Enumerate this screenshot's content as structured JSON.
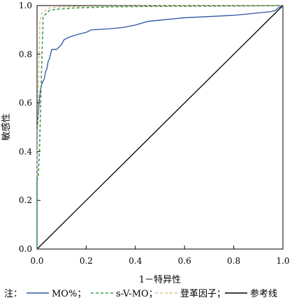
{
  "chart_data": {
    "type": "line",
    "xlabel": "1－特异性",
    "ylabel": "敏感性",
    "xlim": [
      0,
      1
    ],
    "ylim": [
      0,
      1
    ],
    "xticks": [
      "0.0",
      "0.2",
      "0.4",
      "0.6",
      "0.8",
      "1.0"
    ],
    "yticks": [
      "0.0",
      "0.2",
      "0.4",
      "0.6",
      "0.8",
      "1.0"
    ],
    "grid": false,
    "legend_prefix": "注：",
    "legend_position": "bottom",
    "series": [
      {
        "name": "MO%；",
        "color": "#2f55a4",
        "style": "solid",
        "points": [
          [
            0,
            0
          ],
          [
            0,
            0.48
          ],
          [
            0.005,
            0.55
          ],
          [
            0.01,
            0.62
          ],
          [
            0.015,
            0.66
          ],
          [
            0.02,
            0.68
          ],
          [
            0.03,
            0.7
          ],
          [
            0.035,
            0.73
          ],
          [
            0.04,
            0.74
          ],
          [
            0.045,
            0.77
          ],
          [
            0.05,
            0.78
          ],
          [
            0.055,
            0.8
          ],
          [
            0.06,
            0.82
          ],
          [
            0.08,
            0.82
          ],
          [
            0.09,
            0.83
          ],
          [
            0.1,
            0.84
          ],
          [
            0.11,
            0.86
          ],
          [
            0.13,
            0.87
          ],
          [
            0.16,
            0.88
          ],
          [
            0.2,
            0.89
          ],
          [
            0.22,
            0.9
          ],
          [
            0.3,
            0.905
          ],
          [
            0.35,
            0.91
          ],
          [
            0.4,
            0.92
          ],
          [
            0.45,
            0.935
          ],
          [
            0.5,
            0.94
          ],
          [
            0.55,
            0.945
          ],
          [
            0.6,
            0.95
          ],
          [
            0.7,
            0.955
          ],
          [
            0.8,
            0.96
          ],
          [
            0.85,
            0.965
          ],
          [
            0.9,
            0.97
          ],
          [
            0.95,
            0.975
          ],
          [
            0.97,
            0.98
          ],
          [
            0.98,
            0.99
          ],
          [
            1,
            1
          ]
        ]
      },
      {
        "name": "s-V-MO；",
        "color": "#3f9b4d",
        "style": "dashed",
        "points": [
          [
            0,
            0
          ],
          [
            0,
            0.28
          ],
          [
            0.005,
            0.3
          ],
          [
            0.01,
            0.4
          ],
          [
            0.015,
            0.6
          ],
          [
            0.02,
            0.8
          ],
          [
            0.025,
            0.95
          ],
          [
            0.03,
            0.96
          ],
          [
            0.04,
            0.97
          ],
          [
            0.05,
            0.98
          ],
          [
            0.08,
            0.985
          ],
          [
            0.15,
            0.99
          ],
          [
            0.3,
            0.995
          ],
          [
            0.5,
            0.997
          ],
          [
            0.8,
            0.998
          ],
          [
            1,
            1
          ]
        ]
      },
      {
        "name": "登革因子；",
        "color": "#d9c28a",
        "style": "dashed",
        "points": [
          [
            0,
            0
          ],
          [
            0,
            0.3
          ],
          [
            0.003,
            0.5
          ],
          [
            0.008,
            0.8
          ],
          [
            0.012,
            0.93
          ],
          [
            0.02,
            0.97
          ],
          [
            0.035,
            0.98
          ],
          [
            0.05,
            0.99
          ],
          [
            0.1,
            0.995
          ],
          [
            0.2,
            0.997
          ],
          [
            0.5,
            0.999
          ],
          [
            1,
            1
          ]
        ]
      },
      {
        "name": "参考线",
        "color": "#000000",
        "style": "solid",
        "points": [
          [
            0,
            0
          ],
          [
            1,
            1
          ]
        ]
      }
    ]
  }
}
